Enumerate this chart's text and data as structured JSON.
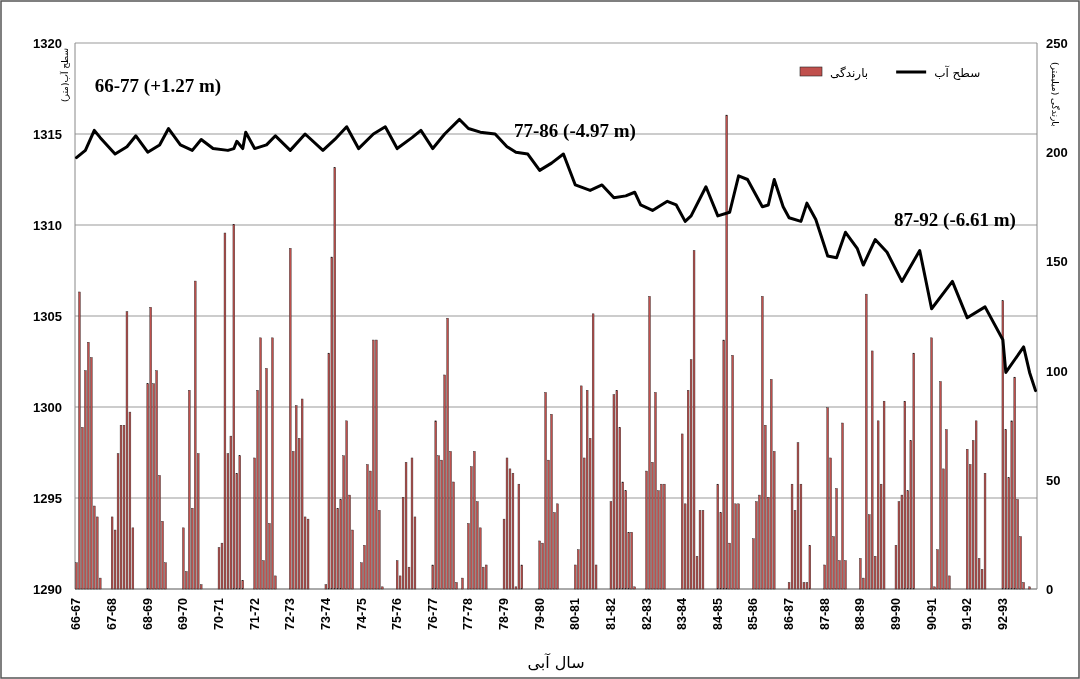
{
  "chart_data": {
    "type": "bar",
    "xlabel": "سال آبی",
    "ylabel": "سطح آب(متر)",
    "y2label": "بارندگی (میلیمتر)",
    "categories": [
      "66-67",
      null,
      null,
      null,
      null,
      null,
      null,
      null,
      null,
      null,
      null,
      null,
      "67-68",
      null,
      null,
      null,
      null,
      null,
      null,
      null,
      null,
      null,
      null,
      null,
      "68-69",
      null,
      null,
      null,
      null,
      null,
      null,
      null,
      null,
      null,
      null,
      null,
      "69-70",
      null,
      null,
      null,
      null,
      null,
      null,
      null,
      null,
      null,
      null,
      null,
      "70-71",
      null,
      null,
      null,
      null,
      null,
      null,
      null,
      null,
      null,
      null,
      null,
      "71-72",
      null,
      null,
      null,
      null,
      null,
      null,
      null,
      null,
      null,
      null,
      null,
      "72-73",
      null,
      null,
      null,
      null,
      null,
      null,
      null,
      null,
      null,
      null,
      null,
      "73-74",
      null,
      null,
      null,
      null,
      null,
      null,
      null,
      null,
      null,
      null,
      null,
      "74-75",
      null,
      null,
      null,
      null,
      null,
      null,
      null,
      null,
      null,
      null,
      null,
      "75-76",
      null,
      null,
      null,
      null,
      null,
      null,
      null,
      null,
      null,
      null,
      null,
      "76-77",
      null,
      null,
      null,
      null,
      null,
      null,
      null,
      null,
      null,
      null,
      null,
      "77-78",
      null,
      null,
      null,
      null,
      null,
      null,
      null,
      null,
      null,
      null,
      null,
      "78-79",
      null,
      null,
      null,
      null,
      null,
      null,
      null,
      null,
      null,
      null,
      null,
      "79-80",
      null,
      null,
      null,
      null,
      null,
      null,
      null,
      null,
      null,
      null,
      null,
      "80-81",
      null,
      null,
      null,
      null,
      null,
      null,
      null,
      null,
      null,
      null,
      null,
      "81-82",
      null,
      null,
      null,
      null,
      null,
      null,
      null,
      null,
      null,
      null,
      null,
      "82-83",
      null,
      null,
      null,
      null,
      null,
      null,
      null,
      null,
      null,
      null,
      null,
      "83-84",
      null,
      null,
      null,
      null,
      null,
      null,
      null,
      null,
      null,
      null,
      null,
      "84-85",
      null,
      null,
      null,
      null,
      null,
      null,
      null,
      null,
      null,
      null,
      null,
      "85-86",
      null,
      null,
      null,
      null,
      null,
      null,
      null,
      null,
      null,
      null,
      null,
      "86-87",
      null,
      null,
      null,
      null,
      null,
      null,
      null,
      null,
      null,
      null,
      null,
      "87-88",
      null,
      null,
      null,
      null,
      null,
      null,
      null,
      null,
      null,
      null,
      null,
      "88-89",
      null,
      null,
      null,
      null,
      null,
      null,
      null,
      null,
      null,
      null,
      null,
      "89-90",
      null,
      null,
      null,
      null,
      null,
      null,
      null,
      null,
      null,
      null,
      null,
      "90-91",
      null,
      null,
      null,
      null,
      null,
      null,
      null,
      null,
      null,
      null,
      null,
      "91-92",
      null,
      null,
      null,
      null,
      null,
      null,
      null,
      null,
      null,
      null,
      null,
      "92-93",
      null,
      null,
      null,
      null,
      null,
      null,
      null,
      null,
      null,
      null,
      null
    ],
    "ylim": [
      1290,
      1320
    ],
    "yticks": [
      1290,
      1295,
      1300,
      1305,
      1310,
      1315,
      1320
    ],
    "y2lim": [
      0,
      250
    ],
    "y2ticks": [
      0,
      50,
      100,
      150,
      200,
      250
    ],
    "grid": "y",
    "legend": "top right",
    "annotations": [
      "66-77 (+1.27 m)",
      "77-86 (-4.97 m)",
      "87-92 (-6.61 m)"
    ],
    "series": [
      {
        "name": "بارندگی",
        "axis": "y2",
        "color": "#c0504d",
        "values": [
          12,
          136,
          74,
          100,
          113,
          106,
          38,
          33,
          5,
          0,
          0,
          0,
          33,
          27,
          62,
          75,
          75,
          127,
          81,
          28,
          0,
          0,
          0,
          0,
          94,
          129,
          94,
          100,
          52,
          31,
          12,
          0,
          0,
          0,
          0,
          0,
          28,
          8,
          91,
          37,
          141,
          62,
          2,
          0,
          0,
          0,
          0,
          0,
          19,
          21,
          163,
          62,
          70,
          167,
          53,
          61,
          4,
          0,
          0,
          0,
          60,
          91,
          115,
          13,
          101,
          30,
          115,
          6,
          0,
          0,
          0,
          0,
          156,
          63,
          84,
          69,
          87,
          33,
          32,
          0,
          0,
          0,
          0,
          0,
          2,
          108,
          152,
          193,
          37,
          41,
          61,
          77,
          43,
          27,
          0,
          0,
          12,
          20,
          57,
          54,
          114,
          114,
          36,
          1,
          0,
          0,
          0,
          0,
          13,
          6,
          42,
          58,
          10,
          60,
          33,
          0,
          0,
          0,
          0,
          0,
          11,
          77,
          61,
          59,
          98,
          124,
          63,
          49,
          3,
          0,
          5,
          0,
          30,
          56,
          63,
          40,
          28,
          10,
          11,
          0,
          0,
          0,
          0,
          0,
          32,
          60,
          55,
          53,
          1,
          48,
          11,
          0,
          0,
          0,
          0,
          0,
          22,
          21,
          90,
          59,
          80,
          35,
          39,
          0,
          0,
          0,
          0,
          0,
          11,
          18,
          93,
          60,
          91,
          69,
          126,
          11,
          0,
          0,
          0,
          0,
          40,
          89,
          91,
          74,
          49,
          45,
          26,
          26,
          1,
          0,
          0,
          0,
          54,
          134,
          58,
          90,
          45,
          48,
          48,
          0,
          0,
          0,
          0,
          0,
          71,
          39,
          91,
          105,
          155,
          15,
          36,
          36,
          0,
          0,
          0,
          0,
          48,
          35,
          114,
          217,
          21,
          107,
          39,
          39,
          0,
          0,
          0,
          0,
          23,
          40,
          43,
          134,
          75,
          42,
          96,
          63,
          0,
          0,
          0,
          0,
          3,
          48,
          36,
          67,
          48,
          3,
          3,
          20,
          0,
          0,
          0,
          0,
          11,
          83,
          60,
          24,
          46,
          13,
          76,
          13,
          0,
          0,
          0,
          0,
          14,
          5,
          135,
          34,
          109,
          15,
          77,
          48,
          86,
          0,
          0,
          0,
          20,
          40,
          43,
          86,
          45,
          68,
          108,
          0,
          0,
          0,
          0,
          0,
          115,
          1,
          18,
          95,
          55,
          73,
          6,
          0,
          0,
          0,
          0,
          0,
          64,
          57,
          68,
          77,
          14,
          9,
          53,
          0,
          0,
          0,
          0,
          0,
          132,
          73,
          51,
          77,
          97,
          41,
          24,
          3,
          0,
          1,
          0,
          0
        ]
      },
      {
        "name": "سطح آب",
        "type": "line",
        "color": "#000000",
        "values": [
          1313.7,
          null,
          null,
          1314.1,
          null,
          null,
          1315.2,
          null,
          1314.8,
          null,
          null,
          null,
          null,
          1313.9,
          null,
          null,
          null,
          1314.3,
          null,
          null,
          1314.9,
          null,
          null,
          null,
          1314.0,
          null,
          null,
          null,
          1314.4,
          null,
          null,
          1315.3,
          null,
          null,
          null,
          1314.4,
          null,
          null,
          null,
          1314.1,
          null,
          null,
          1314.7,
          null,
          null,
          null,
          1314.2,
          null,
          null,
          null,
          null,
          1314.1,
          null,
          1314.2,
          1314.6,
          null,
          1314.2,
          1315.1,
          null,
          null,
          1314.2,
          null,
          null,
          null,
          1314.4,
          null,
          null,
          1314.9,
          null,
          null,
          null,
          null,
          1314.1,
          null,
          null,
          null,
          null,
          1315.0,
          null,
          null,
          null,
          null,
          null,
          1314.1,
          null,
          null,
          null,
          1314.7,
          null,
          null,
          null,
          1315.4,
          null,
          null,
          null,
          1314.2,
          null,
          null,
          null,
          null,
          1315.0,
          null,
          null,
          null,
          1315.4,
          null,
          null,
          null,
          1314.2,
          null,
          null,
          null,
          null,
          1314.8,
          null,
          null,
          1315.2,
          null,
          null,
          null,
          1314.2,
          null,
          null,
          null,
          1315.0,
          null,
          null,
          null,
          null,
          1315.8,
          null,
          null,
          1315.3,
          null,
          null,
          null,
          1315.1,
          null,
          null,
          null,
          null,
          1315.0,
          null,
          null,
          null,
          1314.3,
          null,
          null,
          1314.0,
          null,
          null,
          null,
          1313.9,
          null,
          null,
          null,
          1313.0,
          null,
          null,
          null,
          1313.4,
          null,
          null,
          null,
          1313.9,
          null,
          null,
          null,
          1312.2,
          null,
          null,
          null,
          null,
          1311.9,
          null,
          null,
          null,
          1312.2,
          null,
          null,
          null,
          1311.5,
          null,
          null,
          null,
          1311.6,
          null,
          null,
          1311.8,
          null,
          1311.1,
          null,
          null,
          null,
          1310.8,
          null,
          null,
          null,
          null,
          1311.3,
          null,
          null,
          1311.1,
          null,
          null,
          1310.2,
          null,
          1310.5,
          null,
          null,
          null,
          null,
          1312.1,
          null,
          null,
          null,
          1310.5,
          null,
          null,
          null,
          1310.7,
          null,
          null,
          1312.7,
          null,
          null,
          1312.5,
          null,
          null,
          null,
          null,
          1311.0,
          null,
          1311.1,
          null,
          1312.5,
          null,
          null,
          1311.0,
          null,
          1310.4,
          null,
          null,
          null,
          1310.2,
          null,
          1311.2,
          null,
          null,
          1310.3,
          null,
          null,
          null,
          1308.3,
          null,
          null,
          1308.2,
          null,
          null,
          1309.6,
          null,
          null,
          null,
          1308.7,
          null,
          1307.8,
          null,
          null,
          null,
          1309.2,
          null,
          null,
          null,
          1308.5,
          null,
          null,
          null,
          null,
          1306.9,
          null,
          null,
          null,
          null,
          null,
          1308.6,
          null,
          null,
          null,
          1305.4,
          null,
          null,
          null,
          null,
          null,
          null,
          1306.9,
          null,
          null,
          null,
          null,
          1304.9,
          null,
          null,
          null,
          null,
          null,
          1305.5,
          null,
          null,
          null,
          null,
          null,
          1303.7,
          1301.9,
          null,
          null,
          null,
          null,
          null,
          1303.3,
          null,
          1301.9,
          null,
          1300.9
        ]
      }
    ]
  }
}
